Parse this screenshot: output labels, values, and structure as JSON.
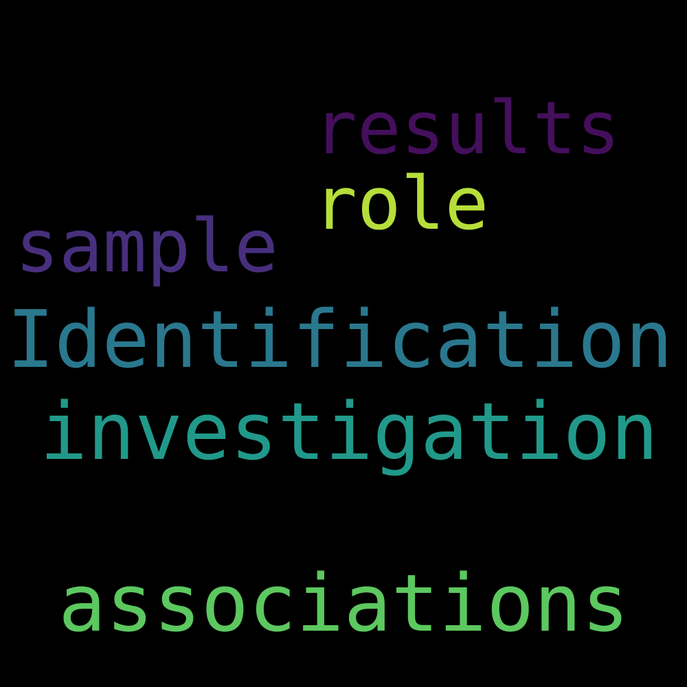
{
  "background_color": "#000000",
  "words": [
    {
      "text": "results",
      "color": "#440F5C"
    },
    {
      "text": "role",
      "color": "#B6DE3A"
    },
    {
      "text": "sample",
      "color": "#472F7D"
    },
    {
      "text": "Identification",
      "color": "#2A788E"
    },
    {
      "text": "investigation",
      "color": "#21998A"
    },
    {
      "text": "associations",
      "color": "#5CC85F"
    }
  ]
}
